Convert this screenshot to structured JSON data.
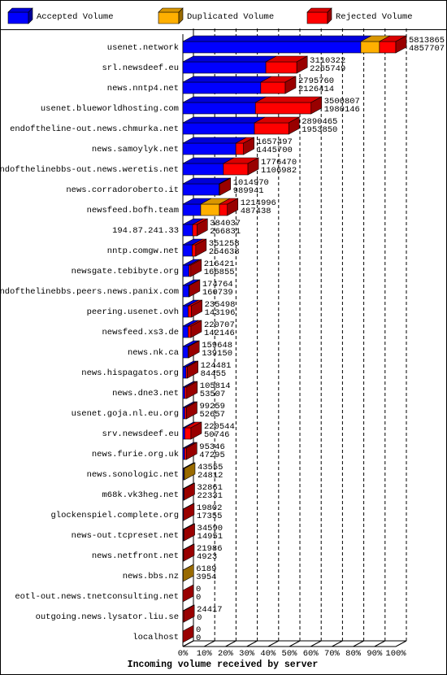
{
  "chart_data": {
    "type": "bar3d",
    "orientation": "horizontal",
    "title": "Incoming volume received by server",
    "categories": [
      "usenet.network",
      "srl.newsdeef.eu",
      "news.nntp4.net",
      "usenet.blueworldhosting.com",
      "endoftheline-out.news.chmurka.net",
      "news.samoylyk.net",
      "endofthelinebbs-out.news.weretis.net",
      "news.corradoroberto.it",
      "newsfeed.bofh.team",
      "194.87.241.33",
      "nntp.comgw.net",
      "newsgate.tebibyte.org",
      "endofthelinebbs.peers.news.panix.com",
      "peering.usenet.ovh",
      "newsfeed.xs3.de",
      "news.nk.ca",
      "news.hispagatos.org",
      "news.dne3.net",
      "usenet.goja.nl.eu.org",
      "srv.newsdeef.eu",
      "news.furie.org.uk",
      "news.sonologic.net",
      "m68k.vk3heg.net",
      "glockenspiel.complete.org",
      "news-out.tcpreset.net",
      "news.netfront.net",
      "news.bbs.nz",
      "eotl-out.news.tnetconsulting.net",
      "outgoing.news.lysator.liu.se",
      "localhost"
    ],
    "totals": [
      5813865,
      3110322,
      2795760,
      3500807,
      2890465,
      1657497,
      1776470,
      1014970,
      1214996,
      384037,
      351258,
      216421,
      174764,
      235498,
      220707,
      159648,
      124481,
      105814,
      99259,
      220544,
      95346,
      43555,
      32861,
      19802,
      34590,
      21986,
      6189,
      0,
      24417,
      0
    ],
    "series": [
      {
        "name": "Accepted Volume",
        "color": "#0000ff",
        "values": [
          4857707,
          2265749,
          2126414,
          1980146,
          1953850,
          1445700,
          1106982,
          989941,
          487438,
          266831,
          254638,
          166855,
          160739,
          143196,
          142146,
          139150,
          84455,
          53507,
          52657,
          50746,
          47295,
          24812,
          22331,
          17355,
          14951,
          4923,
          3954,
          0,
          0,
          0
        ]
      },
      {
        "name": "Duplicated Volume",
        "color": "#ffb000",
        "values": [
          510000,
          0,
          0,
          0,
          0,
          0,
          0,
          0,
          510000,
          0,
          0,
          0,
          0,
          0,
          0,
          0,
          0,
          0,
          0,
          0,
          0,
          18743,
          0,
          0,
          0,
          0,
          2235,
          0,
          0,
          0
        ]
      },
      {
        "name": "Rejected Volume",
        "color": "#ff0000",
        "values": [
          446158,
          844573,
          669346,
          1520661,
          936615,
          211797,
          669488,
          25029,
          217558,
          117206,
          96620,
          49566,
          14025,
          92302,
          78561,
          20498,
          40026,
          52307,
          46602,
          169798,
          48051,
          0,
          10530,
          2447,
          19639,
          17063,
          0,
          0,
          24417,
          0
        ]
      }
    ],
    "xlim": [
      0,
      100
    ],
    "xticks": [
      {
        "value": 0,
        "label": "0%"
      },
      {
        "value": 10,
        "label": "10%"
      },
      {
        "value": 20,
        "label": "20%"
      },
      {
        "value": 30,
        "label": "30%"
      },
      {
        "value": 40,
        "label": "40%"
      },
      {
        "value": 50,
        "label": "50%"
      },
      {
        "value": 60,
        "label": "60%"
      },
      {
        "value": 70,
        "label": "70%"
      },
      {
        "value": 80,
        "label": "80%"
      },
      {
        "value": 90,
        "label": "90%"
      },
      {
        "value": 100,
        "label": "100%"
      }
    ],
    "grid": true,
    "legend": "top"
  }
}
